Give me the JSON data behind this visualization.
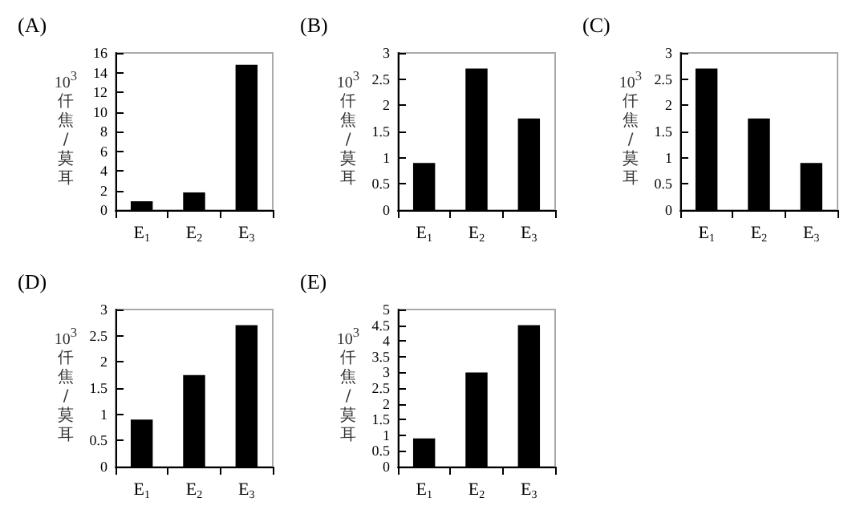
{
  "chart_data": [
    {
      "type": "bar",
      "title": "(A)",
      "ylabel": "10$^{3}$ 仟焦/莫耳",
      "categories": [
        "E$_{1}$",
        "E$_{2}$",
        "E$_{3}$"
      ],
      "values": [
        0.9,
        1.8,
        14.8
      ],
      "color": "#000000",
      "ylim": [
        0,
        16
      ],
      "yticks": [
        0,
        2,
        4,
        6,
        8,
        10,
        12,
        14,
        16
      ],
      "grid": false
    },
    {
      "type": "bar",
      "title": "(B)",
      "ylabel": "10$^{3}$ 仟焦/莫耳",
      "categories": [
        "E$_{1}$",
        "E$_{2}$",
        "E$_{3}$"
      ],
      "values": [
        0.9,
        2.7,
        1.75
      ],
      "color": "#000000",
      "ylim": [
        0,
        3
      ],
      "yticks": [
        0,
        0.5,
        1,
        1.5,
        2,
        2.5,
        3
      ],
      "grid": false
    },
    {
      "type": "bar",
      "title": "(C)",
      "ylabel": "10$^{3}$ 仟焦/莫耳",
      "categories": [
        "E$_{1}$",
        "E$_{2}$",
        "E$_{3}$"
      ],
      "values": [
        2.7,
        1.75,
        0.9
      ],
      "color": "#000000",
      "ylim": [
        0,
        3
      ],
      "yticks": [
        0,
        0.5,
        1,
        1.5,
        2,
        2.5,
        3
      ],
      "grid": false
    },
    {
      "type": "bar",
      "title": "(D)",
      "ylabel": "10$^{3}$ 仟焦/莫耳",
      "categories": [
        "E$_{1}$",
        "E$_{2}$",
        "E$_{3}$"
      ],
      "values": [
        0.9,
        1.75,
        2.7
      ],
      "color": "#000000",
      "ylim": [
        0,
        3
      ],
      "yticks": [
        0,
        0.5,
        1,
        1.5,
        2,
        2.5,
        3
      ],
      "grid": false
    },
    {
      "type": "bar",
      "title": "(E)",
      "ylabel": "10$^{3}$ 仟焦/莫耳",
      "categories": [
        "E$_{1}$",
        "E$_{2}$",
        "E$_{3}$"
      ],
      "values": [
        0.9,
        3,
        4.5
      ],
      "color": "#000000",
      "ylim": [
        0,
        5
      ],
      "yticks": [
        0,
        0.5,
        1,
        1.5,
        2,
        2.5,
        3,
        3.5,
        4,
        4.5,
        5
      ],
      "grid": false
    }
  ]
}
